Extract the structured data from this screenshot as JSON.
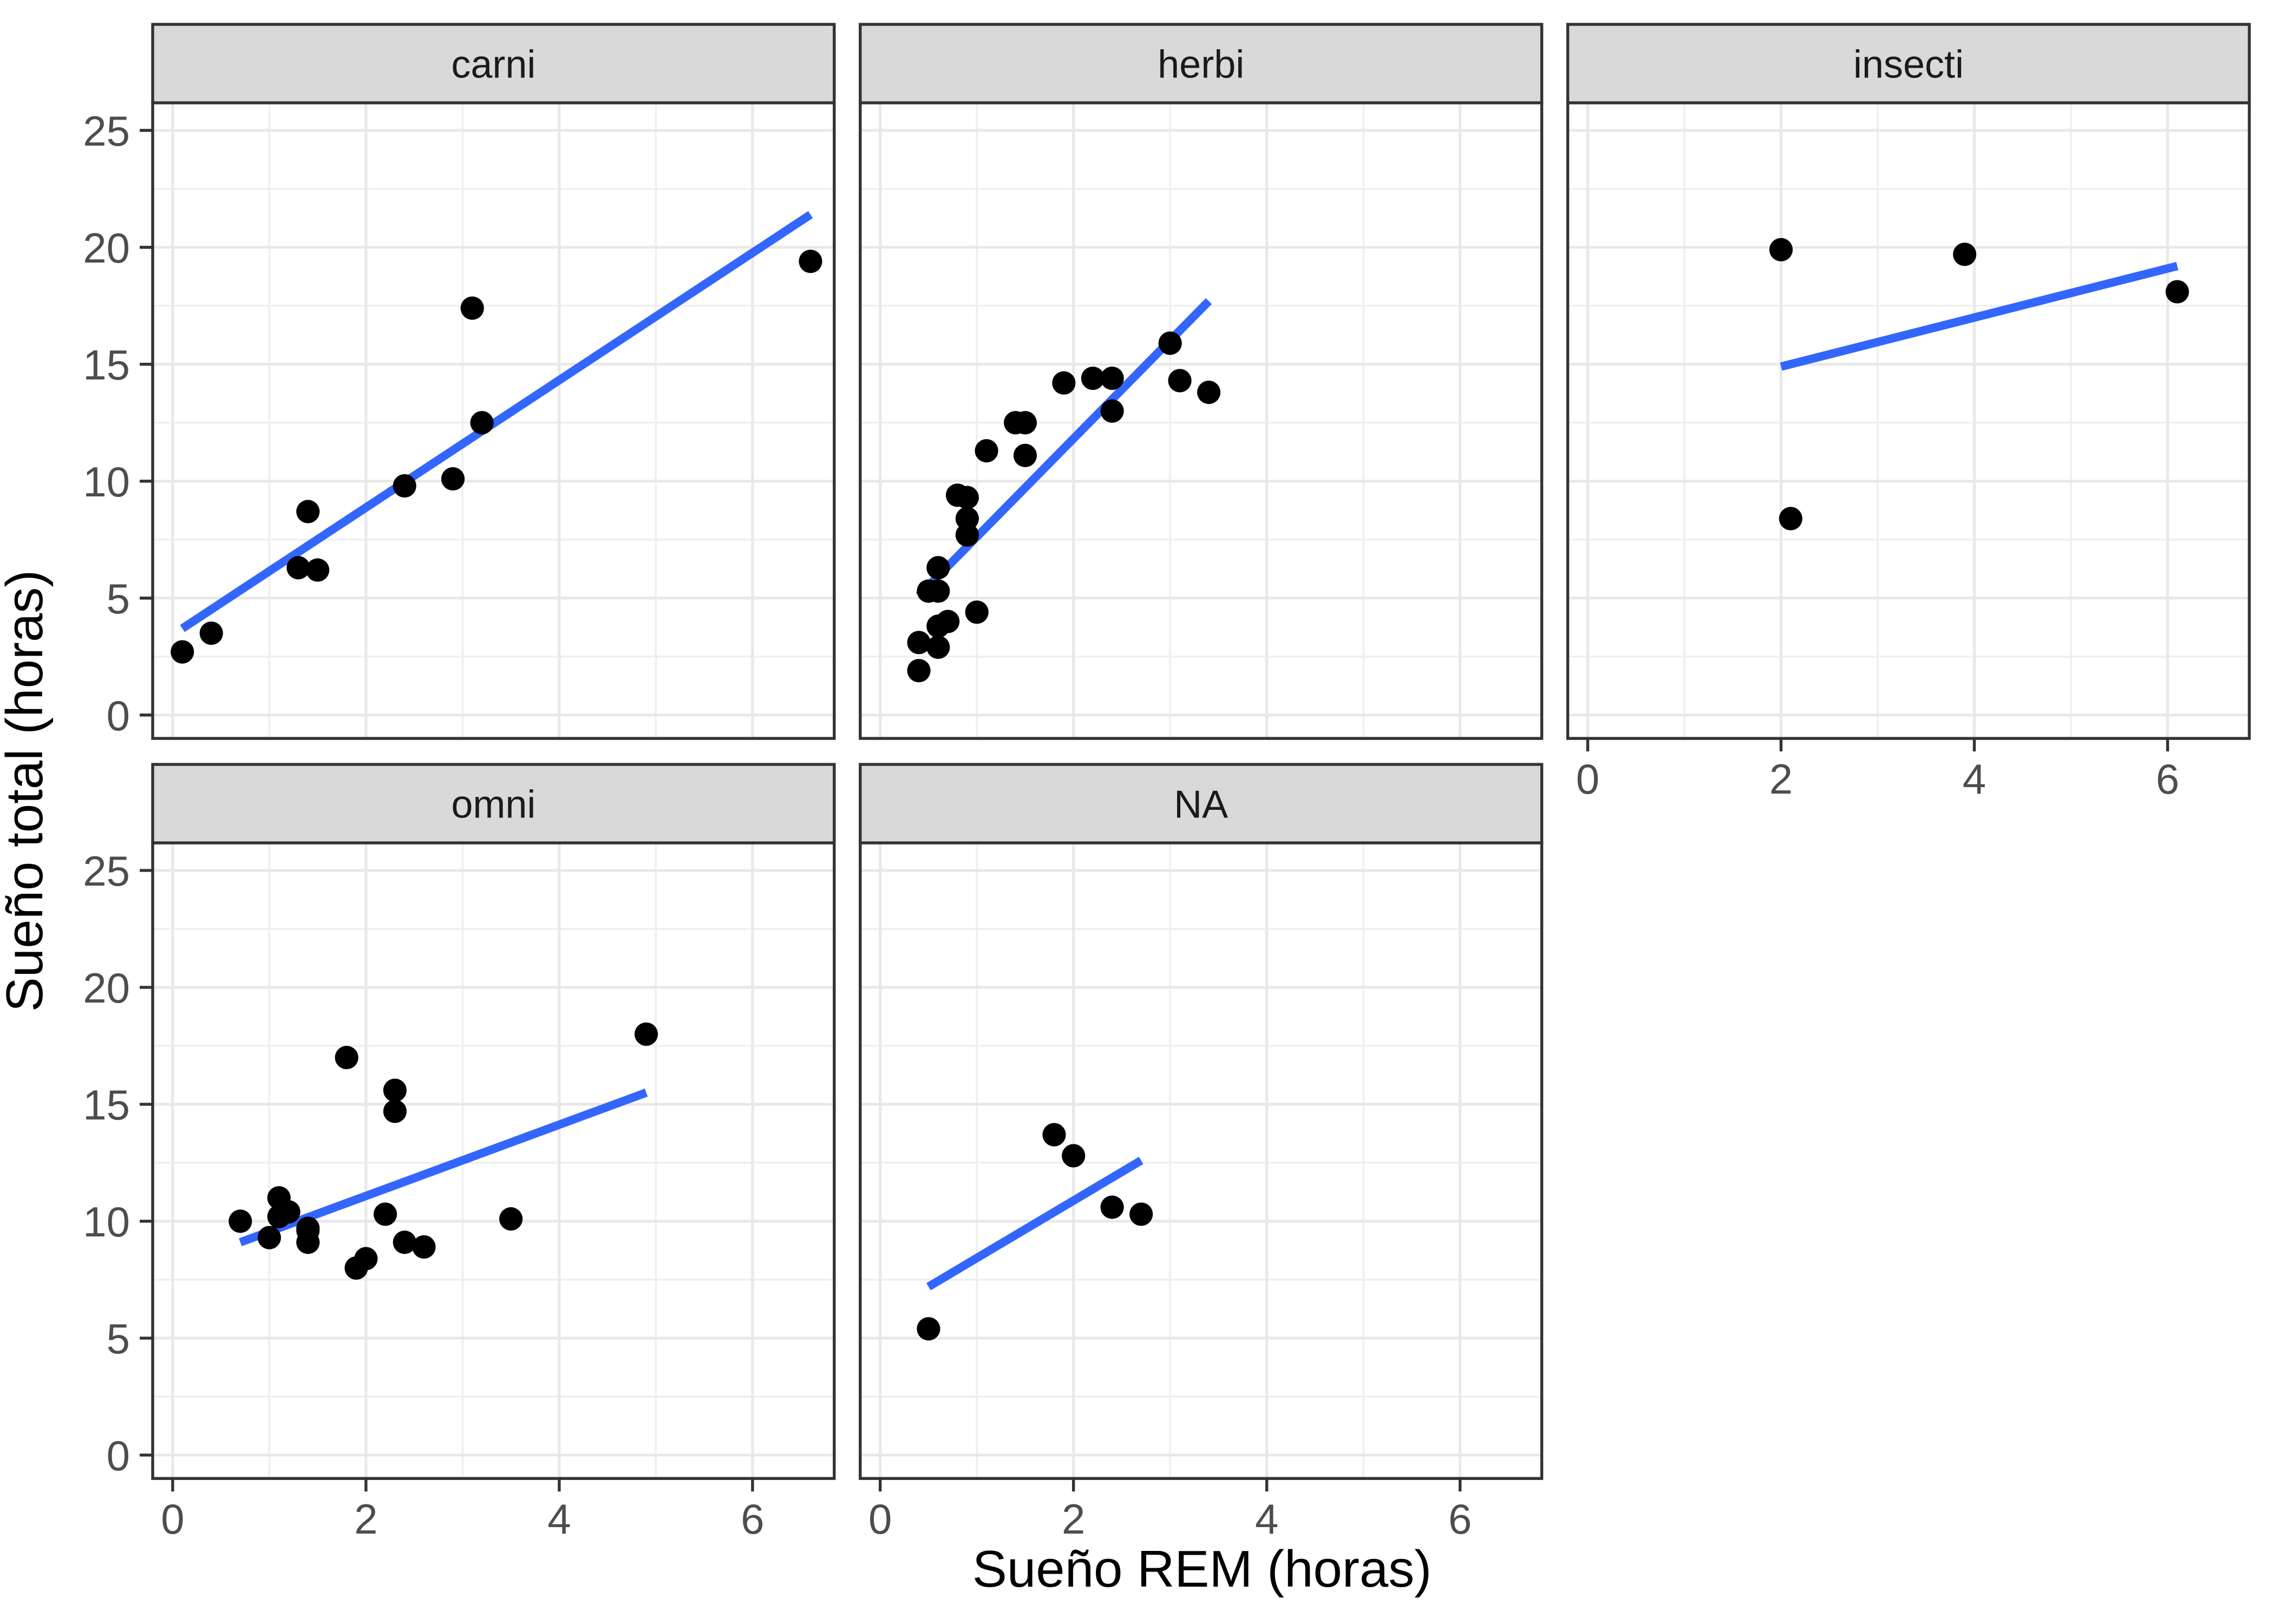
{
  "chart_data": {
    "type": "scatter",
    "title": "",
    "xlabel": "Sueño REM (horas)",
    "ylabel": "Sueño total (horas)",
    "facet_variable_levels": [
      "carni",
      "herbi",
      "insecti",
      "omni",
      "NA"
    ],
    "x_ticks": [
      0,
      2,
      4,
      6
    ],
    "y_ticks": [
      0,
      5,
      10,
      15,
      20,
      25
    ],
    "x_minor": [
      1,
      3,
      5
    ],
    "y_minor": [
      2.5,
      7.5,
      12.5,
      17.5,
      22.5
    ],
    "xlim": [
      -0.21,
      6.85
    ],
    "ylim": [
      -1.0,
      26.18
    ],
    "grid": true,
    "legend": "none",
    "colors": {
      "point": "#000000",
      "smooth_line": "#3366FF",
      "strip_bg": "#D9D9D9",
      "strip_text": "#1A1A1A",
      "panel_border": "#333333",
      "panel_bg": "#FFFFFF",
      "grid_major": "#E8E8E8",
      "grid_minor": "#EFEFEF",
      "axis_text": "#4D4D4D",
      "axis_title": "#000000",
      "background": "#FFFFFF"
    },
    "facets": [
      {
        "label": "carni",
        "row": 0,
        "col": 0,
        "show_x_axis": false,
        "show_y_axis": true,
        "points": [
          [
            0.1,
            2.7
          ],
          [
            0.4,
            3.5
          ],
          [
            1.3,
            6.3
          ],
          [
            1.4,
            8.7
          ],
          [
            1.5,
            6.2
          ],
          [
            2.4,
            9.8
          ],
          [
            2.9,
            10.1
          ],
          [
            3.1,
            17.4
          ],
          [
            3.2,
            12.5
          ],
          [
            6.6,
            19.4
          ]
        ],
        "trend": [
          [
            0.1,
            3.7
          ],
          [
            6.6,
            21.4
          ]
        ]
      },
      {
        "label": "herbi",
        "row": 0,
        "col": 1,
        "show_x_axis": false,
        "show_y_axis": false,
        "points": [
          [
            0.4,
            1.9
          ],
          [
            0.4,
            3.1
          ],
          [
            0.5,
            5.3
          ],
          [
            0.6,
            2.9
          ],
          [
            0.6,
            3.8
          ],
          [
            0.6,
            5.3
          ],
          [
            0.6,
            6.3
          ],
          [
            0.7,
            4.0
          ],
          [
            0.8,
            9.4
          ],
          [
            0.9,
            9.3
          ],
          [
            0.9,
            8.4
          ],
          [
            0.9,
            7.7
          ],
          [
            1.0,
            4.4
          ],
          [
            1.1,
            11.3
          ],
          [
            1.4,
            12.5
          ],
          [
            1.5,
            12.5
          ],
          [
            1.5,
            11.1
          ],
          [
            1.9,
            14.2
          ],
          [
            2.2,
            14.4
          ],
          [
            2.4,
            14.4
          ],
          [
            2.4,
            13.0
          ],
          [
            3.0,
            15.9
          ],
          [
            3.1,
            14.3
          ],
          [
            3.4,
            13.8
          ]
        ],
        "trend": [
          [
            0.4,
            5.1
          ],
          [
            3.4,
            17.7
          ]
        ]
      },
      {
        "label": "insecti",
        "row": 0,
        "col": 2,
        "show_x_axis": true,
        "show_y_axis": false,
        "points": [
          [
            2.0,
            19.9
          ],
          [
            2.1,
            8.4
          ],
          [
            3.9,
            19.7
          ],
          [
            6.1,
            18.1
          ]
        ],
        "trend": [
          [
            2.0,
            14.9
          ],
          [
            6.1,
            19.2
          ]
        ]
      },
      {
        "label": "omni",
        "row": 1,
        "col": 0,
        "show_x_axis": true,
        "show_y_axis": true,
        "points": [
          [
            0.7,
            10.0
          ],
          [
            1.0,
            9.3
          ],
          [
            1.1,
            11.0
          ],
          [
            1.1,
            10.2
          ],
          [
            1.2,
            10.4
          ],
          [
            1.4,
            9.7
          ],
          [
            1.4,
            9.6
          ],
          [
            1.4,
            9.1
          ],
          [
            1.8,
            17.0
          ],
          [
            1.9,
            8.0
          ],
          [
            2.0,
            8.4
          ],
          [
            2.2,
            10.3
          ],
          [
            2.3,
            15.6
          ],
          [
            2.3,
            14.7
          ],
          [
            2.4,
            9.1
          ],
          [
            2.6,
            8.9
          ],
          [
            3.5,
            10.1
          ],
          [
            4.9,
            18.0
          ]
        ],
        "trend": [
          [
            0.7,
            9.1
          ],
          [
            4.9,
            15.5
          ]
        ]
      },
      {
        "label": "NA",
        "row": 1,
        "col": 1,
        "show_x_axis": true,
        "show_y_axis": false,
        "points": [
          [
            0.5,
            5.4
          ],
          [
            1.8,
            13.7
          ],
          [
            2.0,
            12.8
          ],
          [
            2.4,
            10.6
          ],
          [
            2.7,
            10.3
          ]
        ],
        "trend": [
          [
            0.5,
            7.2
          ],
          [
            2.7,
            12.6
          ]
        ]
      }
    ]
  }
}
